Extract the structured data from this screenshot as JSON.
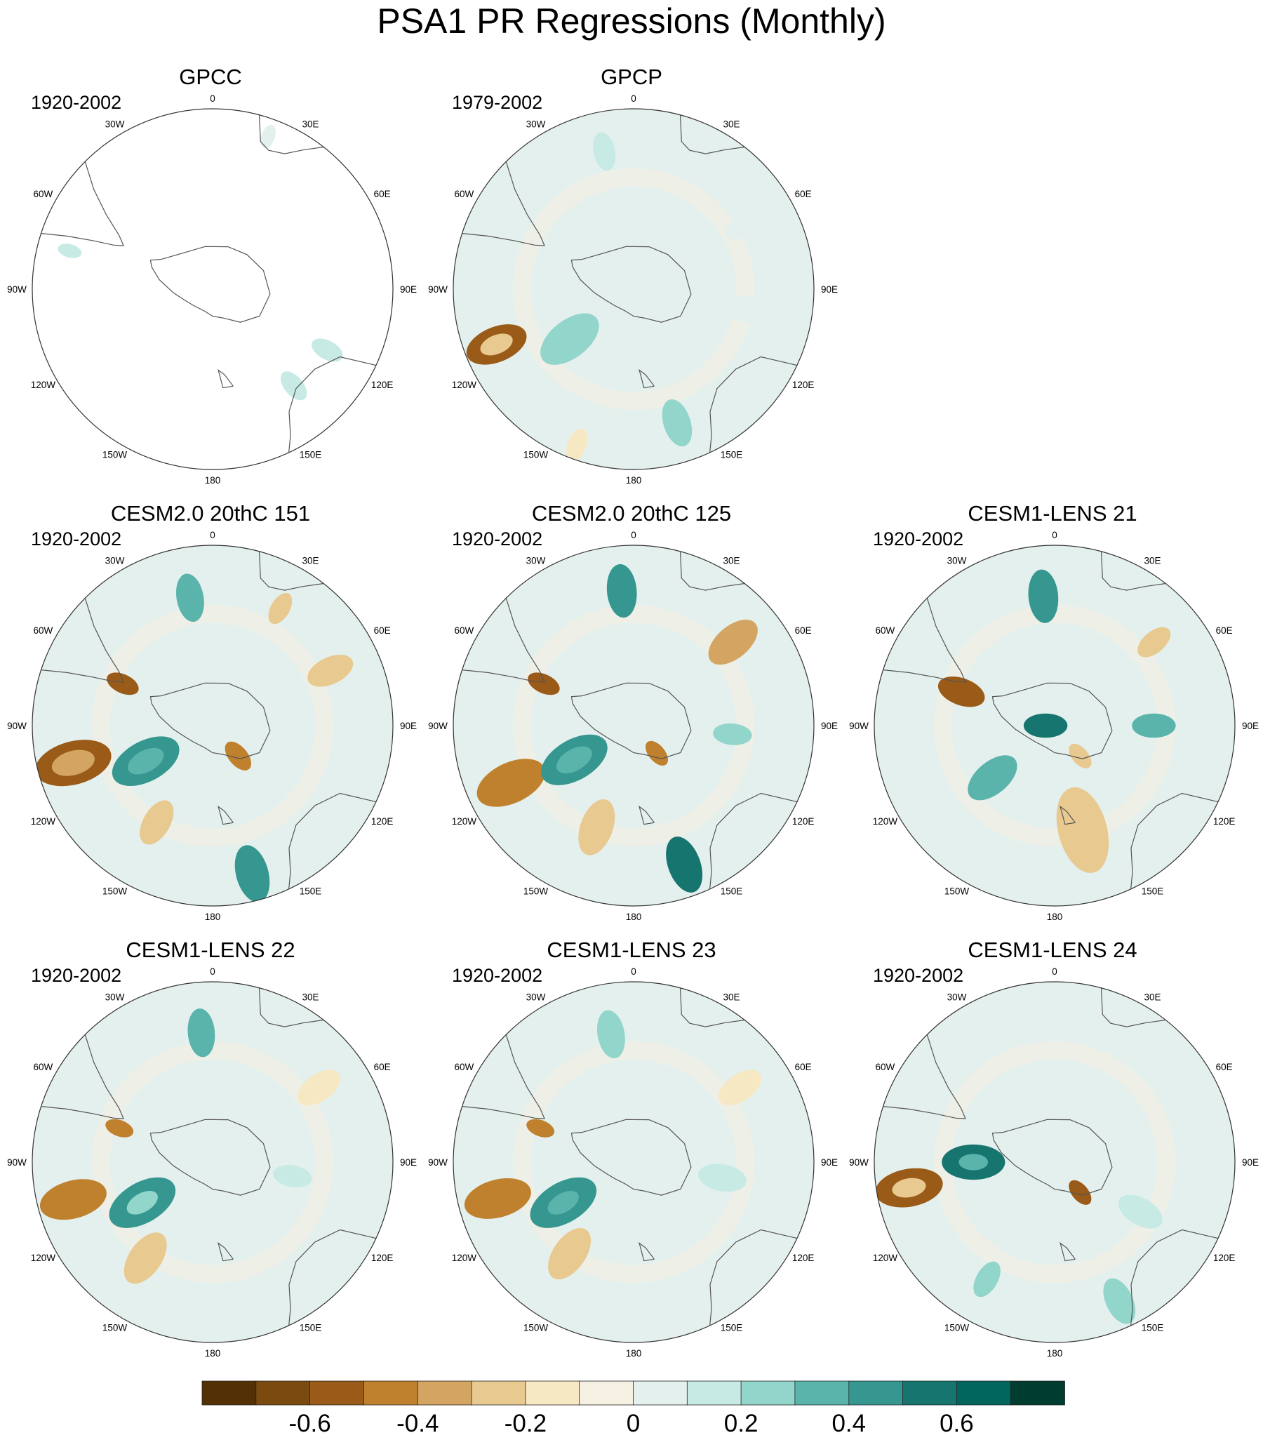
{
  "title": "PSA1 PR Regressions (Monthly)",
  "longitude_labels": [
    "0",
    "30E",
    "60E",
    "90E",
    "120E",
    "150E",
    "180",
    "150W",
    "120W",
    "90W",
    "60W",
    "30W"
  ],
  "panels": [
    {
      "title": "GPCC",
      "period": "1920-2002",
      "coverage": "land",
      "blobs": [
        {
          "lon": -75,
          "r": 0.82,
          "rad": 0.05,
          "v": 0.12
        },
        {
          "lon": 20,
          "r": 0.9,
          "rad": 0.05,
          "v": 0.06
        },
        {
          "lon": 118,
          "r": 0.72,
          "rad": 0.07,
          "v": 0.16
        },
        {
          "lon": 140,
          "r": 0.7,
          "rad": 0.07,
          "v": 0.1
        }
      ]
    },
    {
      "title": "GPCP",
      "period": "1979-2002",
      "coverage": "all",
      "blobs": [
        {
          "lon": -112,
          "r": 0.82,
          "rad": 0.13,
          "v": -0.55
        },
        {
          "lon": -112,
          "r": 0.82,
          "rad": 0.07,
          "v": -0.3
        },
        {
          "lon": -128,
          "r": 0.45,
          "rad": 0.14,
          "v": 0.22
        },
        {
          "lon": 162,
          "r": 0.78,
          "rad": 0.1,
          "v": 0.24
        },
        {
          "lon": -12,
          "r": 0.78,
          "rad": 0.08,
          "v": 0.1
        },
        {
          "lon": 60,
          "r": 0.7,
          "rad": 0.08,
          "v": 0.08
        },
        {
          "lon": -160,
          "r": 0.92,
          "rad": 0.07,
          "v": -0.2
        },
        {
          "lon": 100,
          "r": 0.65,
          "rad": 0.1,
          "v": 0.06
        }
      ]
    },
    {
      "title": "",
      "period": "",
      "coverage": "none",
      "blobs": []
    },
    {
      "title": "CESM2.0 20thC 151",
      "period": "1920-2002",
      "coverage": "all",
      "blobs": [
        {
          "lon": -105,
          "r": 0.8,
          "rad": 0.16,
          "v": -0.6
        },
        {
          "lon": -105,
          "r": 0.8,
          "rad": 0.09,
          "v": -0.35
        },
        {
          "lon": -118,
          "r": 0.42,
          "rad": 0.15,
          "v": 0.45
        },
        {
          "lon": -118,
          "r": 0.42,
          "rad": 0.08,
          "v": 0.3
        },
        {
          "lon": -65,
          "r": 0.55,
          "rad": 0.07,
          "v": -0.6
        },
        {
          "lon": 165,
          "r": 0.85,
          "rad": 0.12,
          "v": 0.45
        },
        {
          "lon": -10,
          "r": 0.72,
          "rad": 0.1,
          "v": 0.3
        },
        {
          "lon": 65,
          "r": 0.72,
          "rad": 0.1,
          "v": -0.3
        },
        {
          "lon": 140,
          "r": 0.22,
          "rad": 0.07,
          "v": -0.45
        },
        {
          "lon": -150,
          "r": 0.62,
          "rad": 0.1,
          "v": -0.3
        },
        {
          "lon": 30,
          "r": 0.75,
          "rad": 0.07,
          "v": -0.25
        }
      ]
    },
    {
      "title": "CESM2.0 20thC 125",
      "period": "1920-2002",
      "coverage": "all",
      "blobs": [
        {
          "lon": -115,
          "r": 0.75,
          "rad": 0.15,
          "v": -0.45
        },
        {
          "lon": -120,
          "r": 0.38,
          "rad": 0.15,
          "v": 0.45
        },
        {
          "lon": -120,
          "r": 0.38,
          "rad": 0.08,
          "v": 0.3
        },
        {
          "lon": -65,
          "r": 0.55,
          "rad": 0.07,
          "v": -0.6
        },
        {
          "lon": 160,
          "r": 0.82,
          "rad": 0.12,
          "v": 0.5
        },
        {
          "lon": -5,
          "r": 0.75,
          "rad": 0.11,
          "v": 0.4
        },
        {
          "lon": 50,
          "r": 0.72,
          "rad": 0.12,
          "v": -0.35
        },
        {
          "lon": 140,
          "r": 0.2,
          "rad": 0.06,
          "v": -0.45
        },
        {
          "lon": -160,
          "r": 0.6,
          "rad": 0.12,
          "v": -0.3
        },
        {
          "lon": 95,
          "r": 0.55,
          "rad": 0.08,
          "v": 0.2
        }
      ]
    },
    {
      "title": "CESM1-LENS 21",
      "period": "1920-2002",
      "coverage": "all",
      "blobs": [
        {
          "lon": -70,
          "r": 0.55,
          "rad": 0.1,
          "v": -0.55
        },
        {
          "lon": -90,
          "r": 0.05,
          "rad": 0.09,
          "v": 0.6
        },
        {
          "lon": -5,
          "r": 0.72,
          "rad": 0.11,
          "v": 0.4
        },
        {
          "lon": -130,
          "r": 0.45,
          "rad": 0.12,
          "v": 0.3
        },
        {
          "lon": 90,
          "r": 0.55,
          "rad": 0.09,
          "v": 0.3
        },
        {
          "lon": 50,
          "r": 0.72,
          "rad": 0.08,
          "v": -0.25
        },
        {
          "lon": 165,
          "r": 0.6,
          "rad": 0.18,
          "v": -0.25
        },
        {
          "lon": 140,
          "r": 0.22,
          "rad": 0.06,
          "v": -0.3
        }
      ]
    },
    {
      "title": "CESM1-LENS 22",
      "period": "1920-2002",
      "coverage": "all",
      "blobs": [
        {
          "lon": -105,
          "r": 0.8,
          "rad": 0.14,
          "v": -0.45
        },
        {
          "lon": -120,
          "r": 0.45,
          "rad": 0.15,
          "v": 0.4
        },
        {
          "lon": -120,
          "r": 0.45,
          "rad": 0.07,
          "v": 0.25
        },
        {
          "lon": -70,
          "r": 0.55,
          "rad": 0.06,
          "v": -0.5
        },
        {
          "lon": -5,
          "r": 0.72,
          "rad": 0.1,
          "v": 0.3
        },
        {
          "lon": -145,
          "r": 0.65,
          "rad": 0.12,
          "v": -0.3
        },
        {
          "lon": 55,
          "r": 0.72,
          "rad": 0.1,
          "v": -0.15
        },
        {
          "lon": 100,
          "r": 0.45,
          "rad": 0.08,
          "v": 0.15
        }
      ]
    },
    {
      "title": "CESM1-LENS 23",
      "period": "1920-2002",
      "coverage": "all",
      "blobs": [
        {
          "lon": -105,
          "r": 0.78,
          "rad": 0.14,
          "v": -0.45
        },
        {
          "lon": -120,
          "r": 0.45,
          "rad": 0.15,
          "v": 0.45
        },
        {
          "lon": -120,
          "r": 0.45,
          "rad": 0.07,
          "v": 0.3
        },
        {
          "lon": -70,
          "r": 0.55,
          "rad": 0.06,
          "v": -0.5
        },
        {
          "lon": -10,
          "r": 0.72,
          "rad": 0.1,
          "v": 0.25
        },
        {
          "lon": -145,
          "r": 0.62,
          "rad": 0.12,
          "v": -0.25
        },
        {
          "lon": 55,
          "r": 0.72,
          "rad": 0.1,
          "v": -0.15
        },
        {
          "lon": 100,
          "r": 0.5,
          "rad": 0.1,
          "v": 0.12
        }
      ]
    },
    {
      "title": "CESM1-LENS 24",
      "period": "1920-2002",
      "coverage": "all",
      "blobs": [
        {
          "lon": -100,
          "r": 0.82,
          "rad": 0.14,
          "v": -0.55
        },
        {
          "lon": -100,
          "r": 0.82,
          "rad": 0.07,
          "v": -0.3
        },
        {
          "lon": -90,
          "r": 0.45,
          "rad": 0.13,
          "v": 0.55
        },
        {
          "lon": -90,
          "r": 0.45,
          "rad": 0.06,
          "v": 0.3
        },
        {
          "lon": 140,
          "r": 0.22,
          "rad": 0.06,
          "v": -0.6
        },
        {
          "lon": 155,
          "r": 0.85,
          "rad": 0.1,
          "v": 0.2
        },
        {
          "lon": -150,
          "r": 0.75,
          "rad": 0.08,
          "v": 0.2
        },
        {
          "lon": 120,
          "r": 0.55,
          "rad": 0.1,
          "v": 0.12
        }
      ]
    }
  ],
  "colorbar": {
    "colors": [
      "#543005",
      "#7a4a0f",
      "#9a5a18",
      "#bf812d",
      "#d4a562",
      "#e8c98f",
      "#f6e8c3",
      "#f5f0e2",
      "#e4f0ee",
      "#c7eae5",
      "#92d5cb",
      "#5ab4ac",
      "#35978f",
      "#16756e",
      "#01665e",
      "#003c30"
    ],
    "tick_labels": [
      "-0.6",
      "-0.4",
      "-0.2",
      "0",
      "0.2",
      "0.4",
      "0.6"
    ],
    "tick_values": [
      -0.6,
      -0.4,
      -0.2,
      0,
      0.2,
      0.4,
      0.6
    ],
    "min": -0.8,
    "max": 0.8
  }
}
